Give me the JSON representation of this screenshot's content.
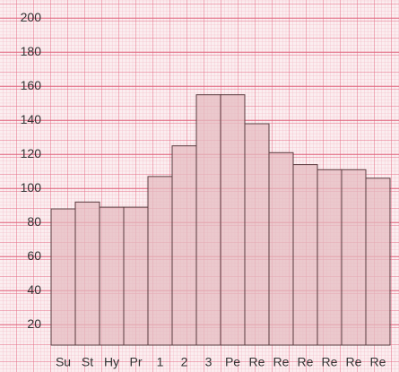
{
  "chart_data": {
    "type": "bar",
    "categories": [
      "Su",
      "St",
      "Hy",
      "Pr",
      "1",
      "2",
      "3",
      "Pe",
      "Re",
      "Re",
      "Re",
      "Re",
      "Re",
      "Re"
    ],
    "values": [
      88,
      92,
      89,
      89,
      107,
      125,
      155,
      155,
      138,
      121,
      114,
      111,
      111,
      106
    ],
    "color": "#e6bcc2",
    "ylim": [
      8,
      208
    ],
    "yticks": [
      20,
      40,
      60,
      80,
      100,
      120,
      140,
      160,
      180,
      200
    ],
    "grid": true
  }
}
